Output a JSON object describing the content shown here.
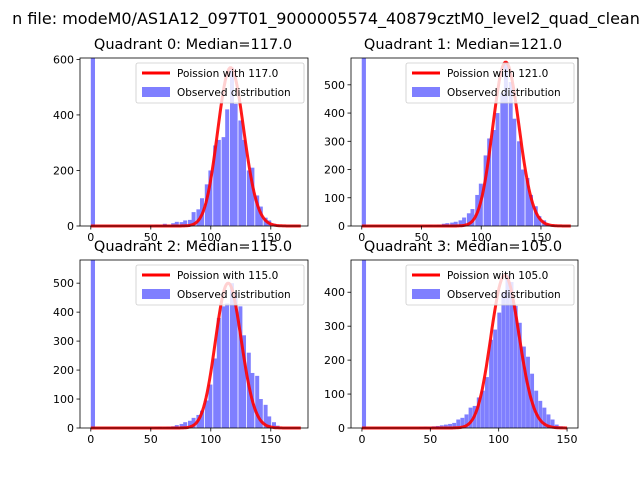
{
  "figure": {
    "suptitle": "n file: modeM0/AS1A12_097T01_9000005574_40879cztM0_level2_quad_clean"
  },
  "colors": {
    "fit": "#ff0000",
    "observed": "#7f7fff",
    "axis": "#000000",
    "background": "#ffffff"
  },
  "chart_data": [
    {
      "type": "bar",
      "title": "Quadrant 0: Median=117.0",
      "median": 117.0,
      "xlim": [
        -9,
        181
      ],
      "ylim": [
        0,
        605
      ],
      "xticks": [
        0,
        50,
        100,
        150
      ],
      "yticks": [
        0,
        200,
        400,
        600
      ],
      "bin_width": 3.5,
      "zero_bin": {
        "x": 0,
        "value": 605
      },
      "bins_x": [
        49,
        53,
        56,
        60,
        63,
        67,
        70,
        74,
        77,
        81,
        84,
        88,
        91,
        95,
        98,
        102,
        105,
        109,
        112,
        116,
        119,
        123,
        126,
        130,
        133,
        137,
        140,
        144,
        147,
        151,
        154
      ],
      "bins_y": [
        3,
        5,
        4,
        8,
        5,
        10,
        15,
        14,
        20,
        22,
        50,
        60,
        100,
        150,
        200,
        290,
        310,
        320,
        420,
        570,
        440,
        380,
        310,
        200,
        210,
        110,
        70,
        30,
        20,
        8,
        5
      ],
      "fit_range": [
        0,
        175
      ],
      "legend": {
        "fit_label": "Poission with 117.0",
        "observed_label": "Observed distribution",
        "location": "upper right"
      }
    },
    {
      "type": "bar",
      "title": "Quadrant 1: Median=121.0",
      "median": 121.0,
      "xlim": [
        -9,
        181
      ],
      "ylim": [
        0,
        595
      ],
      "xticks": [
        0,
        50,
        100,
        150
      ],
      "yticks": [
        0,
        100,
        200,
        300,
        400,
        500
      ],
      "bin_width": 3.5,
      "zero_bin": {
        "x": 0,
        "value": 595
      },
      "bins_x": [
        53,
        56,
        60,
        63,
        67,
        70,
        74,
        77,
        81,
        84,
        88,
        91,
        95,
        98,
        102,
        105,
        109,
        112,
        116,
        119,
        123,
        126,
        130,
        133,
        137,
        140,
        144,
        147,
        151,
        154,
        158
      ],
      "bins_y": [
        3,
        4,
        3,
        5,
        8,
        10,
        12,
        15,
        20,
        30,
        45,
        60,
        110,
        150,
        250,
        310,
        340,
        400,
        470,
        580,
        510,
        380,
        300,
        200,
        170,
        110,
        70,
        35,
        20,
        8,
        4
      ],
      "fit_range": [
        0,
        175
      ],
      "legend": {
        "fit_label": "Poission with 121.0",
        "observed_label": "Observed distribution",
        "location": "upper right"
      }
    },
    {
      "type": "bar",
      "title": "Quadrant 2: Median=115.0",
      "median": 115.0,
      "xlim": [
        -9,
        181
      ],
      "ylim": [
        0,
        580
      ],
      "xticks": [
        0,
        50,
        100,
        150
      ],
      "yticks": [
        0,
        100,
        200,
        300,
        400,
        500
      ],
      "bin_width": 3.5,
      "zero_bin": {
        "x": 0,
        "value": 580
      },
      "bins_x": [
        53,
        56,
        60,
        63,
        67,
        70,
        74,
        77,
        81,
        84,
        88,
        91,
        95,
        98,
        102,
        105,
        109,
        112,
        116,
        119,
        123,
        126,
        130,
        133,
        137,
        140,
        144,
        147,
        151,
        154
      ],
      "bins_y": [
        3,
        4,
        3,
        5,
        6,
        10,
        14,
        20,
        25,
        35,
        45,
        60,
        95,
        150,
        240,
        380,
        420,
        430,
        500,
        470,
        420,
        320,
        260,
        190,
        180,
        100,
        80,
        40,
        20,
        8
      ],
      "fit_range": [
        0,
        175
      ],
      "legend": {
        "fit_label": "Poission with 115.0",
        "observed_label": "Observed distribution",
        "location": "upper right"
      }
    },
    {
      "type": "bar",
      "title": "Quadrant 3: Median=105.0",
      "median": 105.0,
      "xlim": [
        -8,
        158
      ],
      "ylim": [
        0,
        495
      ],
      "xticks": [
        0,
        50,
        100,
        150
      ],
      "yticks": [
        0,
        100,
        200,
        300,
        400
      ],
      "bin_width": 3.0,
      "zero_bin": {
        "x": 0,
        "value": 495
      },
      "bins_x": [
        42,
        45,
        48,
        51,
        54,
        57,
        60,
        63,
        66,
        69,
        72,
        75,
        78,
        81,
        84,
        87,
        90,
        93,
        96,
        99,
        102,
        105,
        108,
        111,
        114,
        117,
        120,
        123,
        126,
        129,
        132,
        135,
        138,
        141,
        144
      ],
      "bins_y": [
        3,
        4,
        3,
        5,
        6,
        8,
        10,
        12,
        15,
        25,
        30,
        40,
        60,
        65,
        90,
        110,
        150,
        260,
        290,
        340,
        400,
        450,
        430,
        360,
        310,
        240,
        210,
        160,
        110,
        80,
        60,
        40,
        25,
        10,
        5
      ],
      "fit_range": [
        0,
        150
      ],
      "legend": {
        "fit_label": "Poission with 105.0",
        "observed_label": "Observed distribution",
        "location": "upper right"
      }
    }
  ]
}
